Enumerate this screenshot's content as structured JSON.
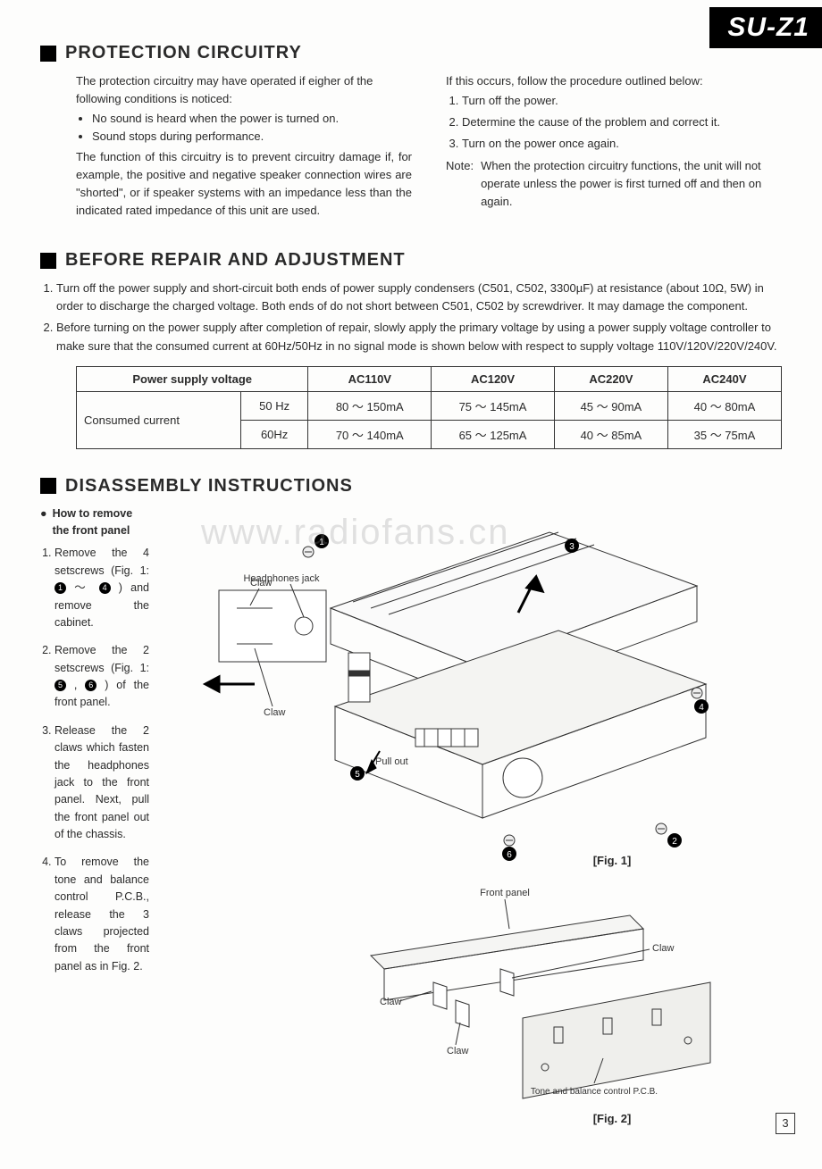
{
  "model": "SU-Z1",
  "watermark": "www.radiofans.cn",
  "sections": {
    "protection": {
      "heading": "PROTECTION CIRCUITRY",
      "left_intro": "The protection circuitry may have operated if eigher of the following conditions is noticed:",
      "left_bullets": [
        "No sound is heard when the power is turned on.",
        "Sound stops during performance."
      ],
      "left_para": "The function of this circuitry is to prevent circuitry damage if, for example, the positive and negative speaker connection wires are \"shorted\", or if speaker systems with an impedance less than the indicated rated impedance of this unit are used.",
      "right_intro": "If this occurs, follow the procedure outlined below:",
      "right_steps": [
        "Turn off the power.",
        "Determine the cause of the problem and correct it.",
        "Turn on the power once again."
      ],
      "note_label": "Note:",
      "note_text": "When the protection circuitry functions, the unit will not operate unless the power is first turned off and then on again."
    },
    "before_repair": {
      "heading": "BEFORE REPAIR AND ADJUSTMENT",
      "steps": [
        "Turn off the power supply and short-circuit both ends of power supply condensers (C501, C502, 3300µF) at resistance (about 10Ω, 5W) in order to discharge the charged voltage. Both ends of do not short between C501, C502 by screwdriver. It may damage the component.",
        "Before turning on the power supply after completion of repair, slowly apply the primary voltage by using a power supply voltage controller to make sure that the consumed current at 60Hz/50Hz in no signal mode is shown below with respect to supply voltage 110V/120V/220V/240V."
      ]
    },
    "voltage_table": {
      "row_header_top": "Power supply voltage",
      "row_header_side": "Consumed current",
      "columns": [
        "AC110V",
        "AC120V",
        "AC220V",
        "AC240V"
      ],
      "freq_labels": [
        "50 Hz",
        "60Hz"
      ],
      "rows": [
        [
          "80 ～ 150mA",
          "75 ～ 145mA",
          "45 ～ 90mA",
          "40 ～ 80mA"
        ],
        [
          "70 ～ 140mA",
          "65 ～ 125mA",
          "40 ～ 85mA",
          "35 ～ 75mA"
        ]
      ]
    },
    "disassembly": {
      "heading": "DISASSEMBLY INSTRUCTIONS",
      "subhead": "How to remove the front panel",
      "steps_html": [
        "Remove the 4 setscrews (Fig. 1: <span class='circled'>1</span> ～ <span class='circled'>4</span> ) and remove the cabinet.",
        "Remove the 2 setscrews (Fig. 1: <span class='circled'>5</span> , <span class='circled'>6</span> ) of the front panel.",
        "Release the 2 claws which fasten the headphones jack to the front panel. Next, pull the front panel out of the chassis.",
        "To remove the tone and balance control P.C.B., release the 3 claws projected from the front panel as in Fig. 2."
      ]
    },
    "figures": {
      "fig1_label": "[Fig. 1]",
      "fig2_label": "[Fig. 2]",
      "fig1_annot": {
        "claw": "Claw",
        "hpjack": "Headphones jack",
        "pullout": "Pull out"
      },
      "fig2_annot": {
        "frontpanel": "Front panel",
        "claw": "Claw",
        "pcb": "Tone and balance control P.C.B."
      }
    }
  },
  "page_number": "3"
}
